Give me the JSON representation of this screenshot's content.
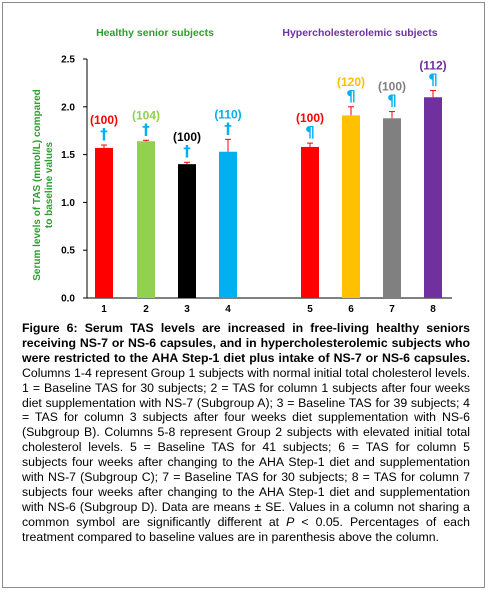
{
  "chart_data": {
    "type": "bar",
    "groups": [
      {
        "label": "Healthy senior subjects",
        "color": "#2ca02c"
      },
      {
        "label": "Hypercholesterolemic subjects",
        "color": "#7030a0"
      }
    ],
    "ylabel": "Serum levels of TAS (mmol/L) compared to baseline values",
    "ylim": [
      0,
      2.5
    ],
    "yticks": [
      "0.0",
      "0.5",
      "1.0",
      "1.5",
      "2.0",
      "2.5"
    ],
    "grid": false,
    "bars": [
      {
        "category": "1",
        "value": 1.57,
        "error": 0.03,
        "color": "#ff0000",
        "percent": "(100)",
        "percent_color": "#ff0000",
        "symbol": "†",
        "symbol_color": "#00b0f0"
      },
      {
        "category": "2",
        "value": 1.64,
        "error": 0.01,
        "color": "#92d050",
        "percent": "(104)",
        "percent_color": "#92d050",
        "symbol": "†",
        "symbol_color": "#00b0f0"
      },
      {
        "category": "3",
        "value": 1.4,
        "error": 0.02,
        "color": "#000000",
        "percent": "(100)",
        "percent_color": "#000000",
        "symbol": "†",
        "symbol_color": "#00b0f0"
      },
      {
        "category": "4",
        "value": 1.53,
        "error": 0.13,
        "color": "#00b0f0",
        "percent": "(110)",
        "percent_color": "#00b0f0",
        "symbol": "†",
        "symbol_color": "#00b0f0"
      },
      {
        "category": "5",
        "value": 1.58,
        "error": 0.04,
        "color": "#ff0000",
        "percent": "(100)",
        "percent_color": "#ff0000",
        "symbol": "¶",
        "symbol_color": "#00b0f0"
      },
      {
        "category": "6",
        "value": 1.91,
        "error": 0.09,
        "color": "#ffc000",
        "percent": "(120)",
        "percent_color": "#ffc000",
        "symbol": "¶",
        "symbol_color": "#00b0f0"
      },
      {
        "category": "7",
        "value": 1.88,
        "error": 0.07,
        "color": "#808080",
        "percent": "(100)",
        "percent_color": "#808080",
        "symbol": "¶",
        "symbol_color": "#00b0f0"
      },
      {
        "category": "8",
        "value": 2.1,
        "error": 0.07,
        "color": "#7030a0",
        "percent": "(112)",
        "percent_color": "#7030a0",
        "symbol": "¶",
        "symbol_color": "#00b0f0"
      }
    ]
  },
  "caption": {
    "bold": "Figure 6: Serum TAS levels are increased in free-living healthy seniors receiving NS-7 or NS-6 capsules, and in hypercholesterolemic subjects who were restricted to the AHA Step-1 diet plus intake of NS-7 or NS-6 capsules.",
    "text1": " Columns 1-4 represent Group 1 subjects with normal initial total cholesterol levels. 1 = Baseline TAS for 30 subjects; 2 = TAS for column 1 subjects after four weeks diet supplementation with NS-7 (Subgroup A); 3 = Baseline TAS for 39 subjects; 4 = TAS for column 3 subjects after four weeks diet supplementation with NS-6 (Subgroup B). Columns 5-8 represent Group 2 subjects with elevated initial total cholesterol levels. 5 = Baseline TAS for 41 subjects; 6 = TAS for column 5 subjects four weeks after changing to the AHA Step-1 diet and supplementation with NS-7 (Subgroup C); 7 = Baseline TAS for 30 subjects; 8 = TAS for column 7 subjects four weeks after changing to the AHA Step-1 diet and supplementation with NS-6 (Subgroup D). Data are means ± SE. Values in a column not sharing a common symbol are significantly different at ",
    "italic": "P",
    "text2": " < 0.05. Percentages of each treatment compared to baseline values are in parenthesis above the column."
  }
}
